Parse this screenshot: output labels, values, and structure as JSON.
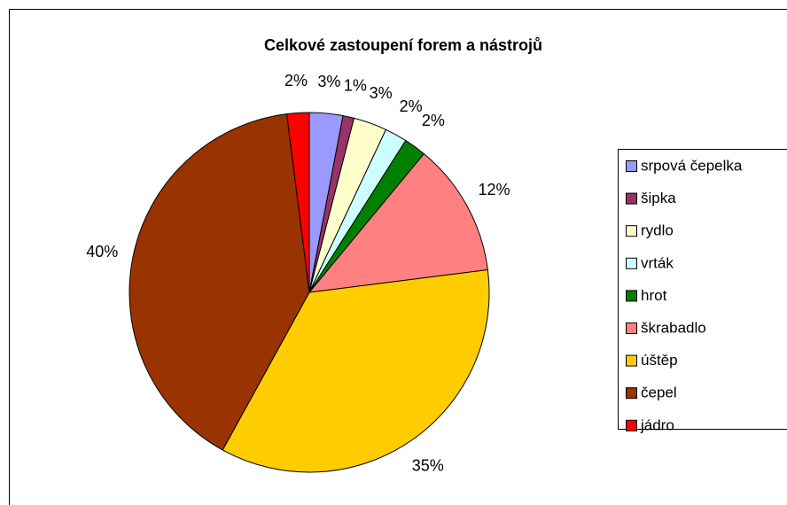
{
  "chart_data": {
    "type": "pie",
    "title": "Celkové zastoupení forem a nástrojů",
    "categories": [
      "srpová čepelka",
      "šipka",
      "rydlo",
      "vrták",
      "hrot",
      "škrabadlo",
      "úštěp",
      "čepel",
      "jádro"
    ],
    "values": [
      3,
      1,
      3,
      2,
      2,
      12,
      35,
      40,
      2
    ],
    "value_labels": [
      "3%",
      "1%",
      "3%",
      "2%",
      "2%",
      "12%",
      "35%",
      "40%",
      "2%"
    ],
    "colors": [
      "#9999ff",
      "#993366",
      "#ffffcc",
      "#ccffff",
      "#008000",
      "#ff8080",
      "#ffcc00",
      "#993300",
      "#ff0000"
    ],
    "legend": "right"
  }
}
